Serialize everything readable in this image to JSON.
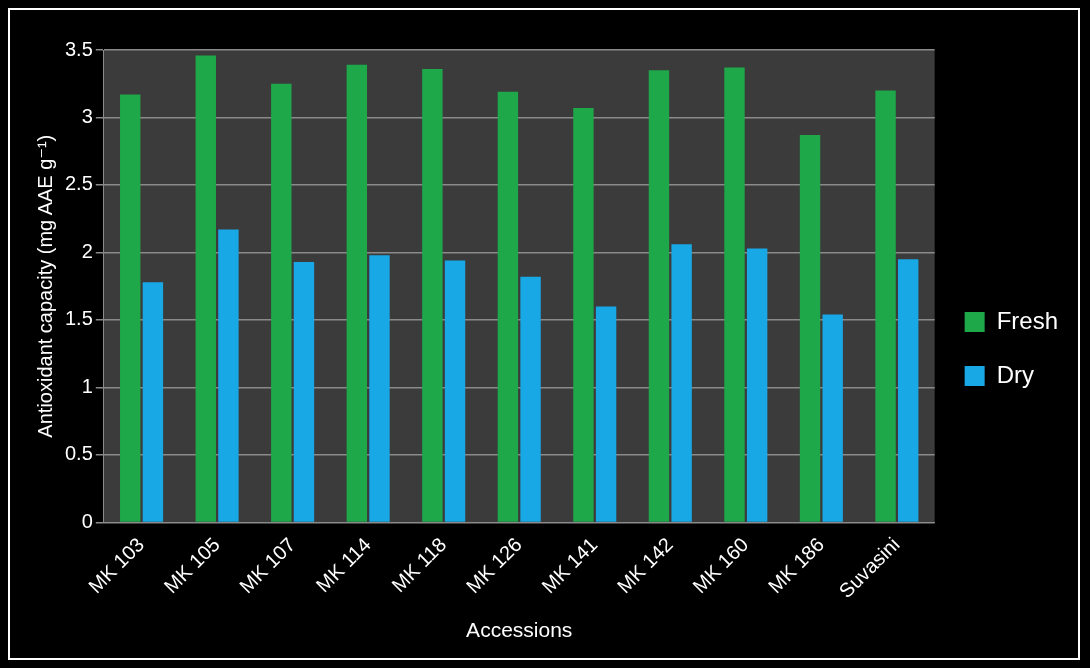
{
  "chart_data": {
    "type": "bar",
    "xlabel": "Accessions",
    "ylabel": "Antioxidant capacity (mg AAE g⁻¹)",
    "categories": [
      "MK 103",
      "MK 105",
      "MK 107",
      "MK 114",
      "MK 118",
      "MK 126",
      "MK 141",
      "MK 142",
      "MK 160",
      "MK 186",
      "Suvasini"
    ],
    "series": [
      {
        "name": "Fresh",
        "color": "#1fa84a",
        "values": [
          3.17,
          3.46,
          3.25,
          3.39,
          3.36,
          3.19,
          3.07,
          3.35,
          3.37,
          2.87,
          3.2
        ]
      },
      {
        "name": "Dry",
        "color": "#19a8e6",
        "values": [
          1.78,
          2.17,
          1.93,
          1.98,
          1.94,
          1.82,
          1.6,
          2.06,
          2.03,
          1.54,
          1.95
        ]
      }
    ],
    "ylim": [
      0,
      3.5
    ],
    "yticks": [
      0,
      0.5,
      1,
      1.5,
      2,
      2.5,
      3,
      3.5
    ],
    "grid": "y",
    "legend": "right"
  }
}
